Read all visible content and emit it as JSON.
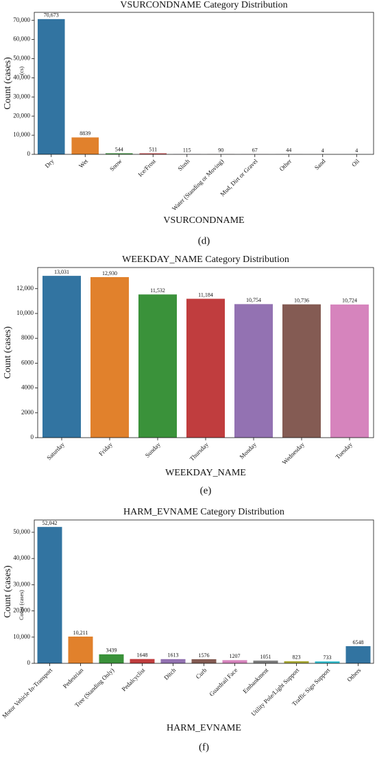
{
  "chart_data": [
    {
      "type": "bar",
      "title": "VSURCONDNAME Category Distribution",
      "xlabel": "VSURCONDNAME",
      "ylabel": "Count (cases)",
      "ylabel2": "(cs)",
      "caption": "(d)",
      "categories": [
        "Dry",
        "Wet",
        "Snow",
        "Ice/Frost",
        "Slush",
        "Water (Standing or Moving)",
        "Mud, Dirt or Gravel",
        "Other",
        "Sand",
        "Oil"
      ],
      "values": [
        70673,
        8839,
        544,
        511,
        115,
        90,
        67,
        44,
        4,
        4
      ],
      "value_labels": [
        "70,673",
        "8839",
        "544",
        "511",
        "115",
        "90",
        "67",
        "44",
        "4",
        "4"
      ],
      "colors": [
        "#3274a1",
        "#e1812c",
        "#3a923a",
        "#c03d3e",
        "#9372b2",
        "#845b53",
        "#d684bd",
        "#7f7f7f",
        "#a9aa35",
        "#2ebece"
      ],
      "ylim": [
        0,
        74200
      ],
      "yticks": [
        0,
        {
          "value": 10000,
          "label": "10,000"
        },
        {
          "value": 20000,
          "label": "20,000"
        },
        {
          "value": 30000,
          "label": "30,000"
        },
        {
          "value": 40000,
          "label": "40,000"
        },
        {
          "value": 50000,
          "label": "50,000"
        },
        {
          "value": 60000,
          "label": "60,000"
        },
        {
          "value": 70000,
          "label": "70,000"
        }
      ]
    },
    {
      "type": "bar",
      "title": "WEEKDAY_NAME Category Distribution",
      "xlabel": "WEEKDAY_NAME",
      "ylabel": "Count (cases)",
      "caption": "(e)",
      "categories": [
        "Saturday",
        "Friday",
        "Sunday",
        "Thursday",
        "Monday",
        "Wednesday",
        "Tuesday"
      ],
      "values": [
        13031,
        12930,
        11532,
        11184,
        10754,
        10736,
        10724
      ],
      "value_labels": [
        "13,031",
        "12,930",
        "11,532",
        "11,184",
        "10,754",
        "10,736",
        "10,724"
      ],
      "colors": [
        "#3274a1",
        "#e1812c",
        "#3a923a",
        "#c03d3e",
        "#9372b2",
        "#845b53",
        "#d684bd"
      ],
      "ylim": [
        0,
        13700
      ],
      "yticks": [
        0,
        2000,
        4000,
        6000,
        8000,
        {
          "value": 10000,
          "label": "10,000"
        },
        {
          "value": 12000,
          "label": "12,000"
        }
      ]
    },
    {
      "type": "bar",
      "title": "HARM_EVNAME Category Distribution",
      "xlabel": "HARM_EVNAME",
      "ylabel": "Count (cases)",
      "ylabel2": "Count (cases)",
      "caption": "(f)",
      "categories": [
        "Motor Vehicle In-Transport",
        "Pedestrian",
        "Tree (Standing Only)",
        "Pedalcyclist",
        "Ditch",
        "Curb",
        "Guardrail Face",
        "Embankment",
        "Utility Pole/Light Support",
        "Traffic Sign Support",
        "Others"
      ],
      "values": [
        52042,
        10211,
        3439,
        1648,
        1613,
        1576,
        1207,
        1051,
        823,
        733,
        6548
      ],
      "value_labels": [
        "52,042",
        "10,211",
        "3439",
        "1648",
        "1613",
        "1576",
        "1207",
        "1051",
        "823",
        "733",
        "6548"
      ],
      "colors": [
        "#3274a1",
        "#e1812c",
        "#3a923a",
        "#c03d3e",
        "#9372b2",
        "#845b53",
        "#d684bd",
        "#7f7f7f",
        "#a9aa35",
        "#2ebece",
        "#3274a1"
      ],
      "ylim": [
        0,
        54700
      ],
      "yticks": [
        0,
        {
          "value": 10000,
          "label": "10,000"
        },
        {
          "value": 20000,
          "label": "20,000"
        },
        {
          "value": 30000,
          "label": "30,000"
        },
        {
          "value": 40000,
          "label": "40,000"
        },
        {
          "value": 50000,
          "label": "50,000"
        }
      ]
    }
  ]
}
